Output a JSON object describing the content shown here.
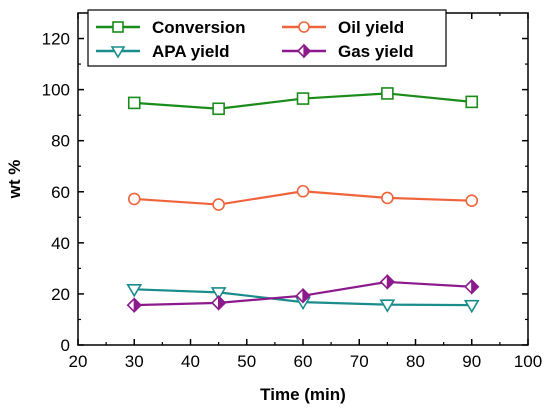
{
  "chart_data": {
    "type": "line",
    "xlabel": "Time (min)",
    "ylabel": "wt %",
    "xlim": [
      20,
      100
    ],
    "ylim": [
      0,
      130
    ],
    "xticks": [
      "20",
      "30",
      "40",
      "50",
      "60",
      "70",
      "80",
      "90",
      "100"
    ],
    "yticks": [
      "0",
      "20",
      "40",
      "60",
      "80",
      "100",
      "120"
    ],
    "grid": false,
    "legend_position": "top",
    "x": [
      30,
      45,
      60,
      75,
      90
    ],
    "series": [
      {
        "name": "Conversion",
        "values": [
          94.8,
          92.5,
          96.5,
          98.5,
          95.2
        ],
        "color": "#1a8c1a",
        "marker": "square"
      },
      {
        "name": "Oil yield",
        "values": [
          57.2,
          55.0,
          60.2,
          57.6,
          56.5
        ],
        "color": "#f0643c",
        "marker": "circle"
      },
      {
        "name": "APA yield",
        "values": [
          21.8,
          20.6,
          16.8,
          15.8,
          15.6
        ],
        "color": "#1a8c8c",
        "marker": "triangle-down"
      },
      {
        "name": "Gas yield",
        "values": [
          15.6,
          16.5,
          19.3,
          24.7,
          22.8
        ],
        "color": "#8c1a8c",
        "marker": "diamond"
      }
    ]
  }
}
